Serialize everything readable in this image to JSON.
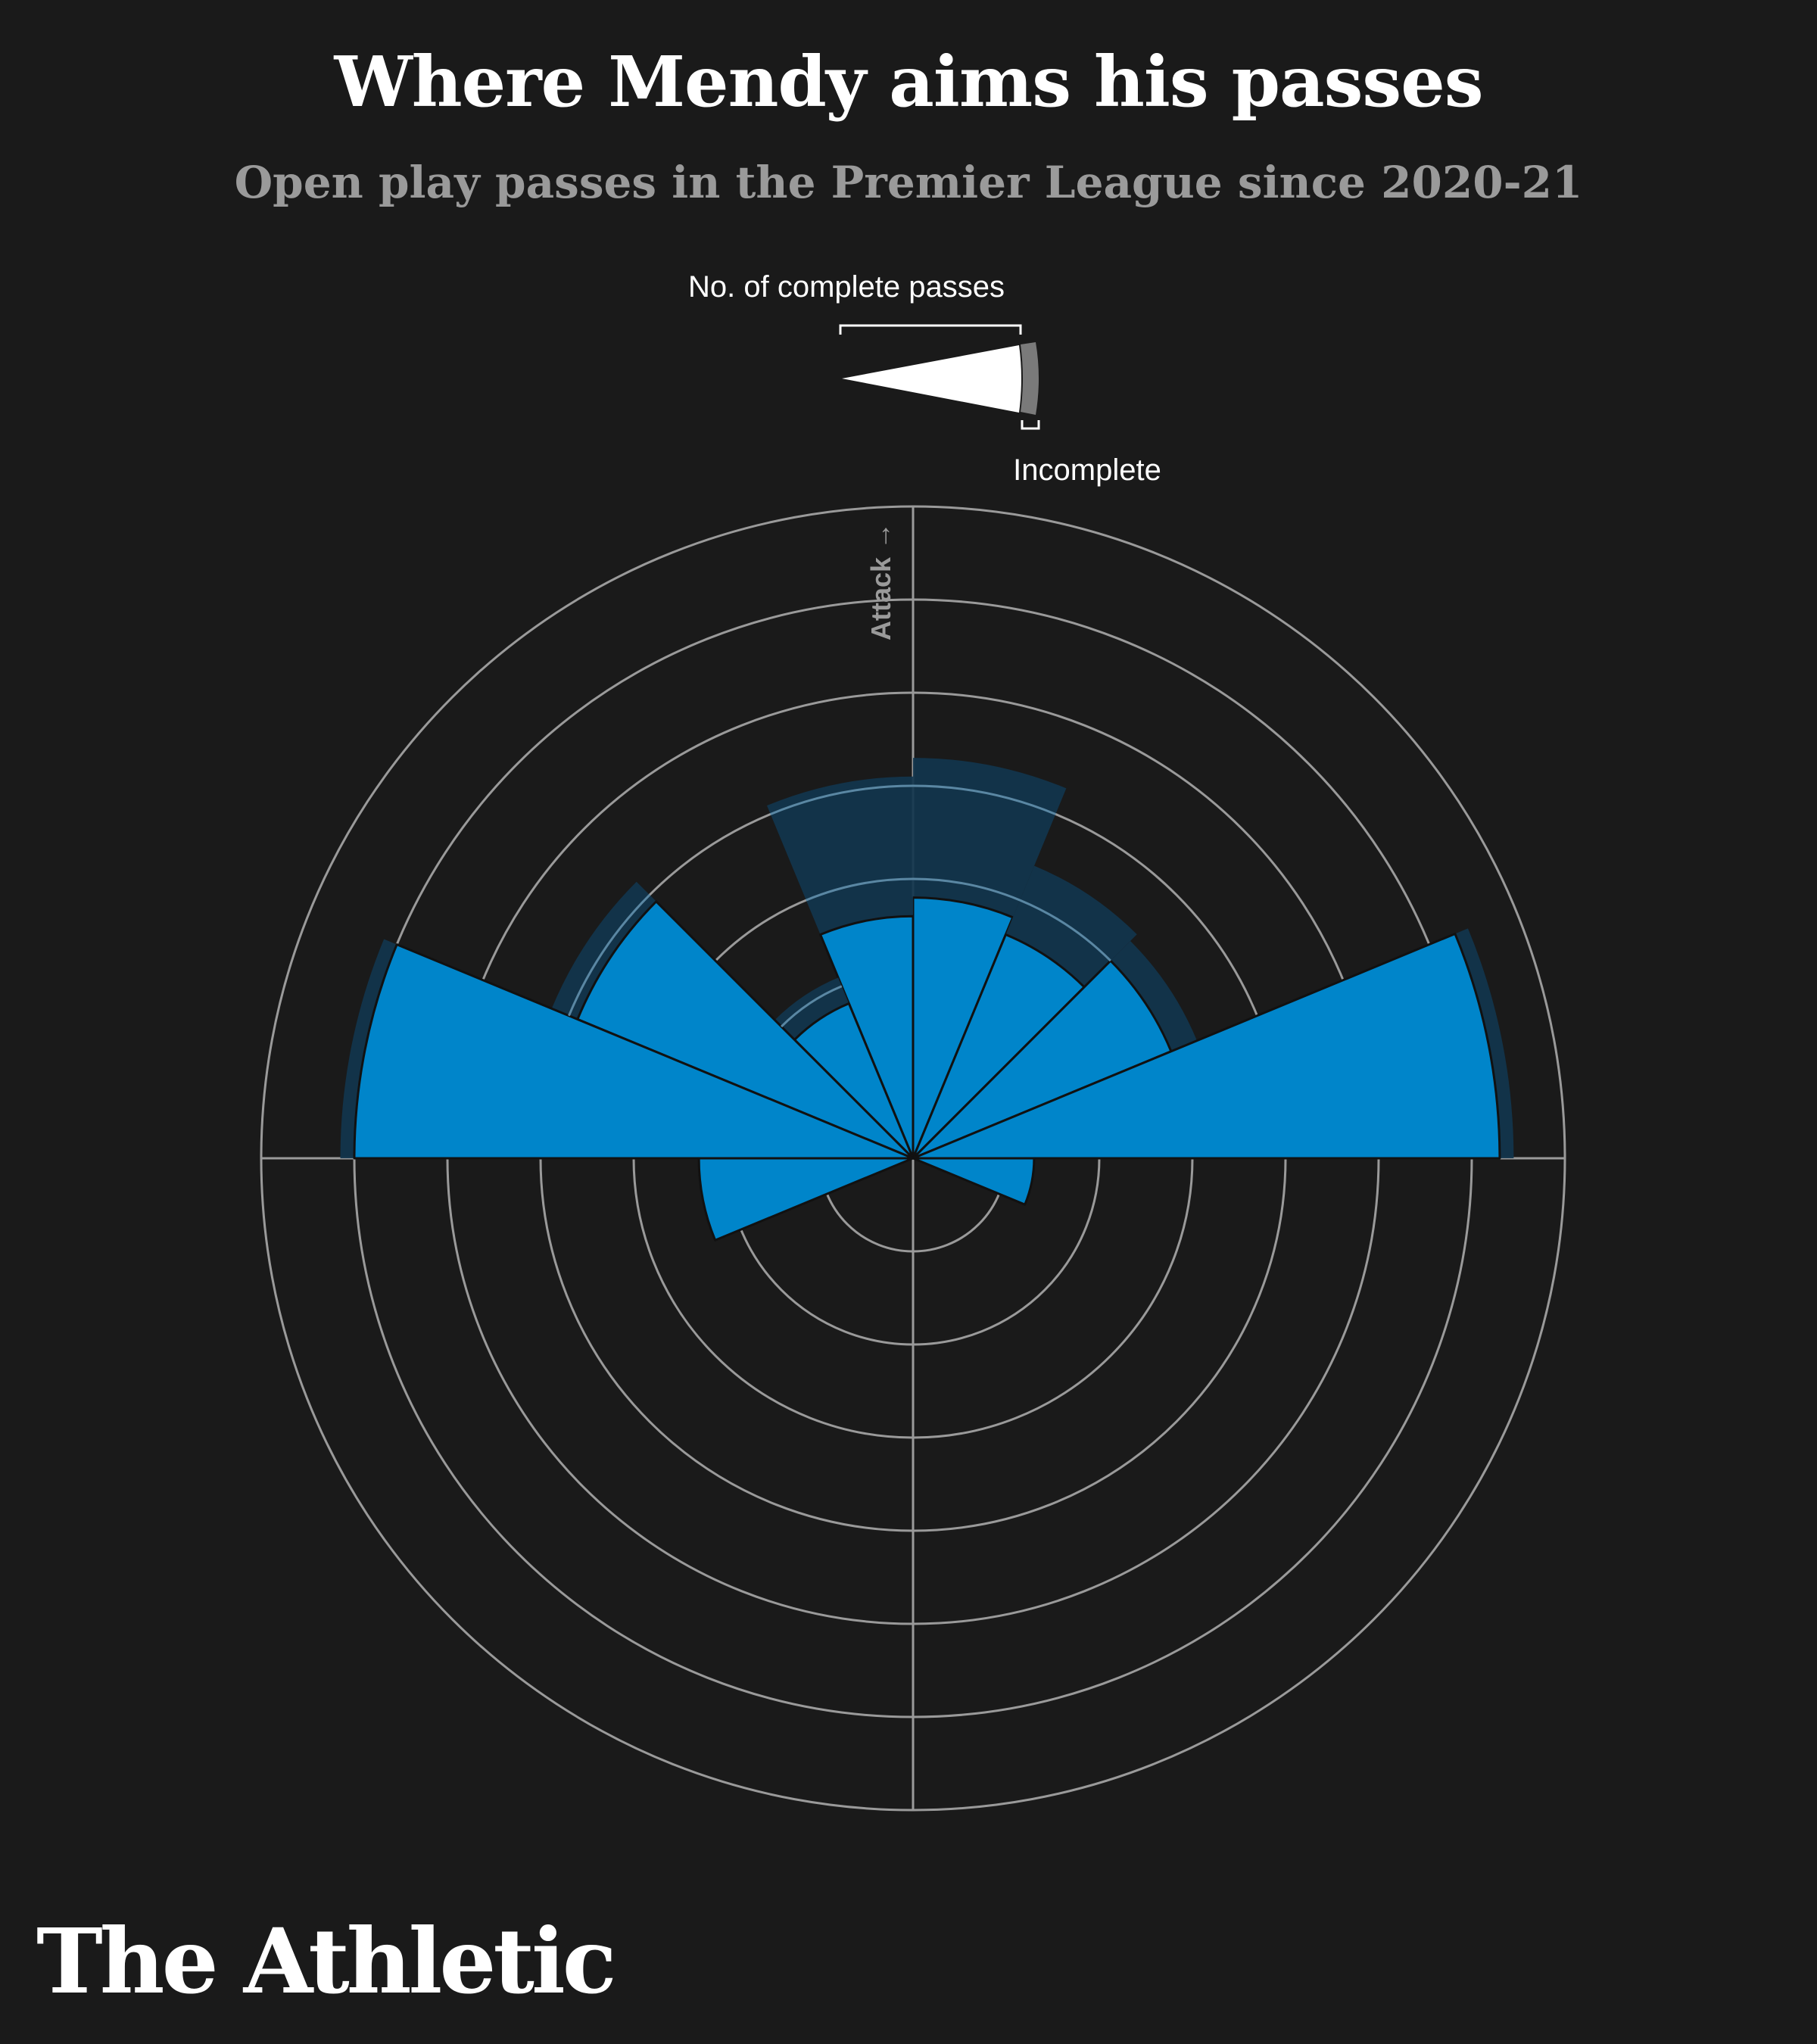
{
  "title": "Where Mendy aims his passes",
  "subtitle": "Open play passes in the Premier League since 2020-21",
  "legend": {
    "complete_label": "No. of complete passes",
    "incomplete_label": "Incomplete"
  },
  "direction_label": "Attack →",
  "brand": "The Athletic",
  "colors": {
    "background": "#1a1a1a",
    "complete": "#0085ca",
    "incomplete": "#11354d",
    "grid": "#9a9a9a",
    "legend_complete": "#ffffff",
    "legend_incomplete": "#7a7a7a"
  },
  "chart_data": {
    "type": "polar-bar",
    "title": "Where Mendy aims his passes",
    "subtitle": "Open play passes in the Premier League since 2020-21",
    "angle_reference": "0 degrees = Attack direction (up), clockwise",
    "sector_width_deg": 22.5,
    "rings": 7,
    "grid": true,
    "series": [
      {
        "name": "Complete",
        "color": "#0085ca"
      },
      {
        "name": "Incomplete",
        "color": "#11354d"
      }
    ],
    "sectors": [
      {
        "center_deg": 11.25,
        "complete": 2.8,
        "incomplete": 1.5
      },
      {
        "center_deg": 33.75,
        "complete": 2.6,
        "incomplete": 0.8
      },
      {
        "center_deg": 56.25,
        "complete": 3.0,
        "incomplete": 0.3
      },
      {
        "center_deg": 78.75,
        "complete": 6.3,
        "incomplete": 0.15
      },
      {
        "center_deg": 101.25,
        "complete": 1.3,
        "incomplete": 0
      },
      {
        "center_deg": -11.25,
        "complete": 2.6,
        "incomplete": 1.5
      },
      {
        "center_deg": -33.75,
        "complete": 1.8,
        "incomplete": 0.3
      },
      {
        "center_deg": -56.25,
        "complete": 3.9,
        "incomplete": 0.3
      },
      {
        "center_deg": -78.75,
        "complete": 6.0,
        "incomplete": 0.15
      },
      {
        "center_deg": -101.25,
        "complete": 2.3,
        "incomplete": 0
      }
    ]
  }
}
